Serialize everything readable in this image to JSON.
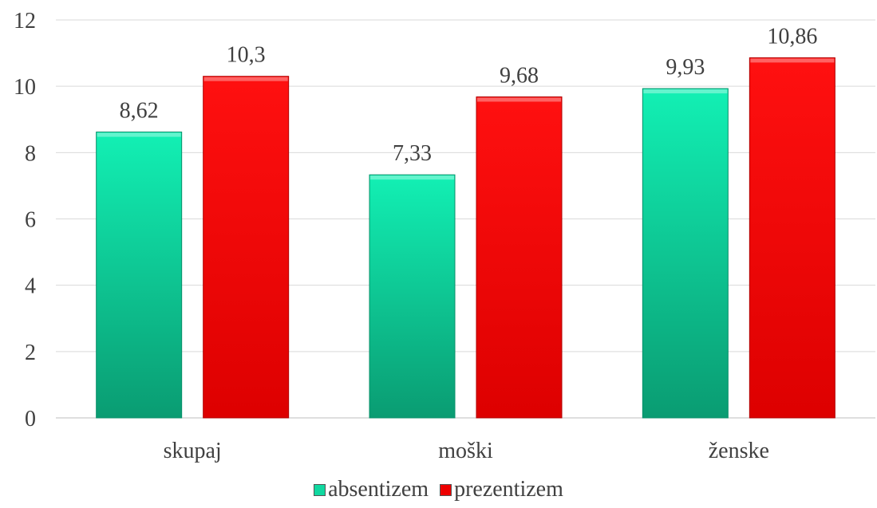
{
  "chart_data": {
    "type": "bar",
    "categories": [
      "skupaj",
      "moški",
      "ženske"
    ],
    "series": [
      {
        "name": "absentizem",
        "values": [
          8.62,
          7.33,
          9.93
        ],
        "labels": [
          "8,62",
          "7,33",
          "9,93"
        ],
        "color": "#10d8a0"
      },
      {
        "name": "prezentizem",
        "values": [
          10.3,
          9.68,
          10.86
        ],
        "labels": [
          "10,3",
          "9,68",
          "10,86"
        ],
        "color": "#ee0000"
      }
    ],
    "ylim": [
      0,
      12
    ],
    "yticks": [
      0,
      2,
      4,
      6,
      8,
      10,
      12
    ],
    "grid": true,
    "legend_position": "bottom"
  }
}
